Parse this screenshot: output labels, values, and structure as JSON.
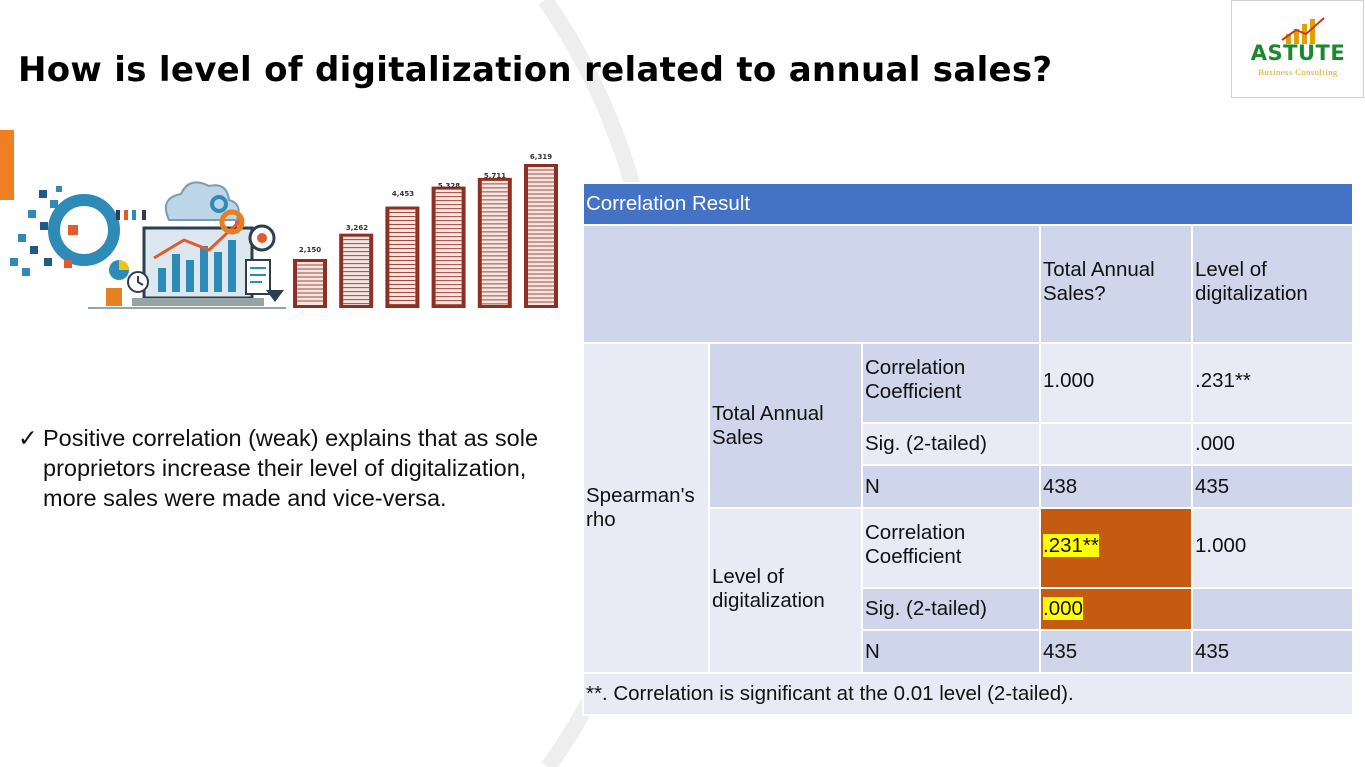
{
  "slide": {
    "title": "How is level of digitalization related to annual sales?"
  },
  "logo": {
    "name": "ASTUTE",
    "subtitle": "Business Consulting"
  },
  "illustration": {
    "bar_labels": [
      "2,150",
      "3,262",
      "4,453",
      "5,328",
      "5,711",
      "6,319"
    ]
  },
  "bullet": {
    "check": "✓",
    "text": "Positive correlation (weak)  explains that as sole proprietors increase their level of digitalization, more sales were made and vice-versa."
  },
  "table": {
    "caption": "Correlation  Result",
    "col_headers": [
      "Total Annual Sales?",
      "Level of digitalization"
    ],
    "method": "Spearman's rho",
    "groups": [
      {
        "name": "Total Annual Sales",
        "rows": [
          {
            "stat": "Correlation Coefficient",
            "v1": "1.000",
            "v2": ".231**"
          },
          {
            "stat": "Sig. (2-tailed)",
            "v1": "",
            "v2": ".000"
          },
          {
            "stat": "N",
            "v1": "438",
            "v2": "435"
          }
        ]
      },
      {
        "name": "Level of digitalization",
        "rows": [
          {
            "stat": "Correlation Coefficient",
            "v1": ".231**",
            "v2": "1.000"
          },
          {
            "stat": "Sig. (2-tailed)",
            "v1": ".000",
            "v2": ""
          },
          {
            "stat": "N",
            "v1": "435",
            "v2": "435"
          }
        ]
      }
    ],
    "footnote": "**. Correlation is significant at the 0.01 level (2-tailed)."
  },
  "colors": {
    "header_blue": "#4472c4",
    "highlight_orange": "#c55a11",
    "highlight_yellow": "#ffff00",
    "accent_orange": "#f07f22",
    "logo_green": "#1a8a2e"
  }
}
